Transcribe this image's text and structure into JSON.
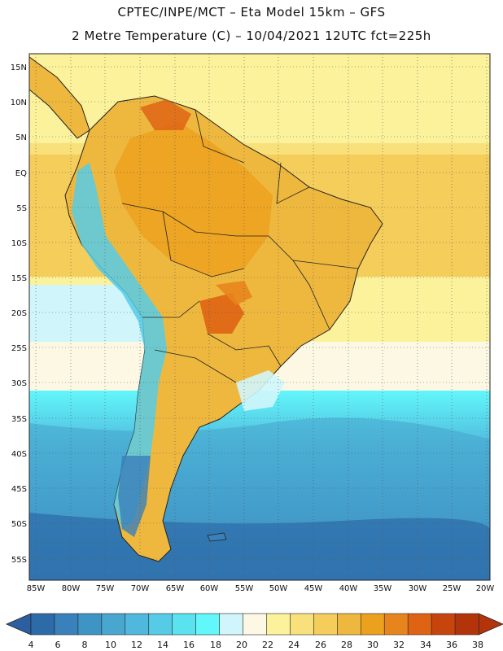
{
  "header": {
    "line1": "CPTEC/INPE/MCT –  Eta Model 15km – GFS",
    "line2": "2 Metre Temperature (C) – 10/04/2021 12UTC fct=225h"
  },
  "axes": {
    "lat_labels": [
      "15N",
      "10N",
      "5N",
      "EQ",
      "5S",
      "10S",
      "15S",
      "20S",
      "25S",
      "30S",
      "35S",
      "40S",
      "45S",
      "50S",
      "55S"
    ],
    "lon_labels": [
      "85W",
      "80W",
      "75W",
      "70W",
      "65W",
      "60W",
      "55W",
      "50W",
      "45W",
      "40W",
      "35W",
      "30W",
      "25W",
      "20W"
    ]
  },
  "colorbar": {
    "labels": [
      "4",
      "6",
      "8",
      "10",
      "12",
      "14",
      "16",
      "18",
      "20",
      "22",
      "24",
      "26",
      "28",
      "30",
      "32",
      "34",
      "36",
      "38"
    ],
    "colors": [
      "#2c6aa8",
      "#3a80bb",
      "#3f94c6",
      "#48a6cf",
      "#50b8dc",
      "#56cbe6",
      "#5be2ef",
      "#62f7fb",
      "#d0f6fb",
      "#fdf8e4",
      "#fbf29b",
      "#f8e07a",
      "#f4cd5a",
      "#eeb83f",
      "#eca11e",
      "#e7851c",
      "#de6414",
      "#c7440c",
      "#b3330a"
    ],
    "left_arrow_color": "#2c5fa0",
    "right_arrow_color": "#b3330a"
  }
}
